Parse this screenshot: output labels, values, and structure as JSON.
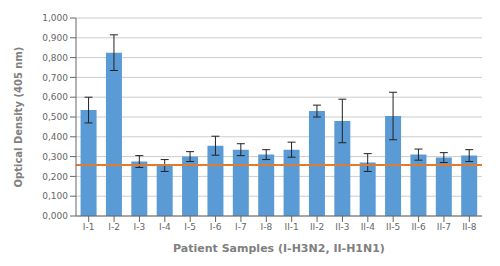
{
  "chart_data": {
    "type": "bar",
    "categories": [
      "I-1",
      "I-2",
      "I-3",
      "I-4",
      "I-5",
      "I-6",
      "I-7",
      "I-8",
      "II-1",
      "II-2",
      "II-3",
      "II-4",
      "II-5",
      "II-6",
      "II-7",
      "II-8"
    ],
    "values": [
      0.535,
      0.825,
      0.275,
      0.255,
      0.3,
      0.355,
      0.335,
      0.31,
      0.335,
      0.53,
      0.48,
      0.27,
      0.505,
      0.31,
      0.295,
      0.305
    ],
    "errors": [
      0.065,
      0.09,
      0.03,
      0.03,
      0.025,
      0.048,
      0.03,
      0.025,
      0.038,
      0.03,
      0.11,
      0.045,
      0.12,
      0.028,
      0.025,
      0.03
    ],
    "color": "#5B9BD5",
    "reference_line": {
      "value": 0.257,
      "color": "#E07B30"
    },
    "x_label": "Patient Samples (I-H3N2, II-H1N1)",
    "y_label": "Optical Density (405 nm)",
    "ylim": [
      0.0,
      1.0
    ],
    "yticks": [
      {
        "value": 0.0,
        "label": "0,000"
      },
      {
        "value": 0.1,
        "label": "0,100"
      },
      {
        "value": 0.2,
        "label": "0,200"
      },
      {
        "value": 0.3,
        "label": "0,300"
      },
      {
        "value": 0.4,
        "label": "0,400"
      },
      {
        "value": 0.5,
        "label": "0,500"
      },
      {
        "value": 0.6,
        "label": "0,600"
      },
      {
        "value": 0.7,
        "label": "0,700"
      },
      {
        "value": 0.8,
        "label": "0,800"
      },
      {
        "value": 0.9,
        "label": "0,900"
      },
      {
        "value": 1.0,
        "label": "1,000"
      }
    ],
    "grid": true
  }
}
